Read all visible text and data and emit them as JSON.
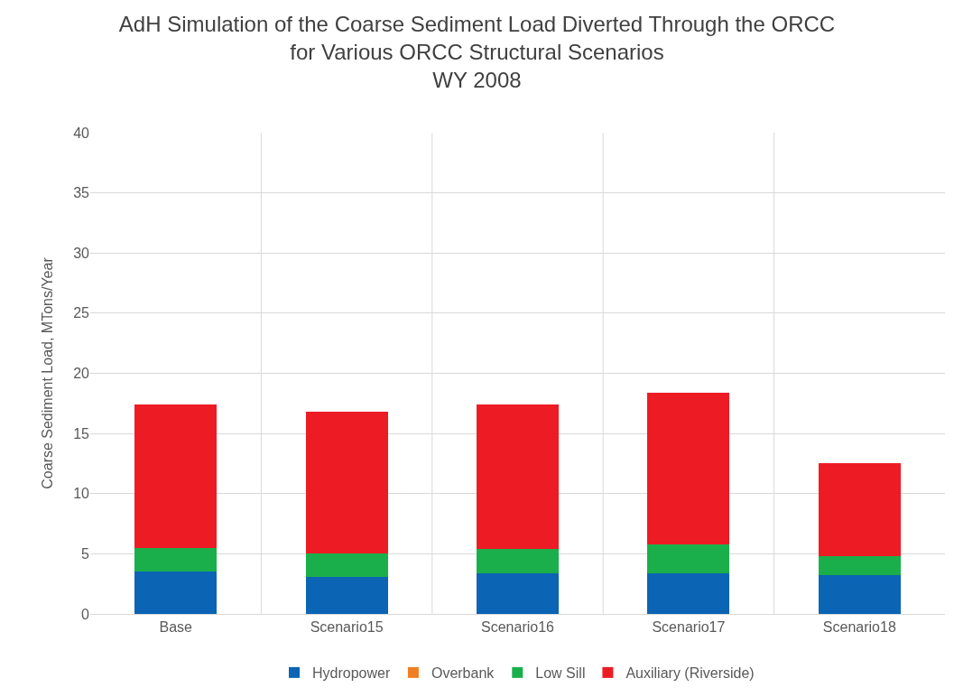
{
  "chart_data": {
    "type": "bar",
    "title": "AdH Simulation of the Coarse Sediment Load Diverted Through the ORCC\nfor Various ORCC Structural Scenarios\nWY 2008",
    "ylabel": "Coarse Sediment Load, MTons/Year",
    "categories": [
      "Base",
      "Scenario15",
      "Scenario16",
      "Scenario17",
      "Scenario18"
    ],
    "stacked": true,
    "series": [
      {
        "name": "Hydropower",
        "color": "#0b64b4",
        "values": [
          3.5,
          3.1,
          3.4,
          3.4,
          3.2
        ]
      },
      {
        "name": "Overbank",
        "color": "#f07f22",
        "values": [
          0,
          0,
          0,
          0,
          0
        ]
      },
      {
        "name": "Low Sill",
        "color": "#1aaf4b",
        "values": [
          2.0,
          1.9,
          2.0,
          2.4,
          1.6
        ]
      },
      {
        "name": "Auxiliary (Riverside)",
        "color": "#ed1c24",
        "values": [
          11.9,
          11.8,
          12.0,
          12.6,
          7.7
        ]
      }
    ],
    "ylim": [
      0,
      40
    ],
    "yticks": [
      0,
      5,
      10,
      15,
      20,
      25,
      30,
      35,
      40
    ],
    "grid": true,
    "legend": "bottom"
  }
}
